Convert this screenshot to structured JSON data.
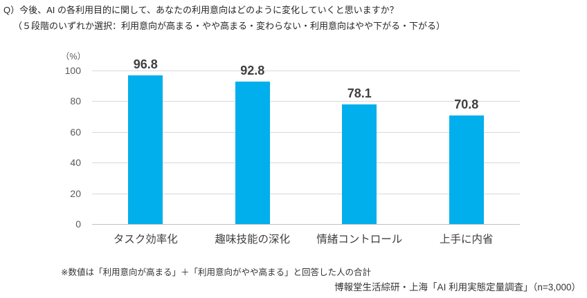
{
  "header": {
    "question": "Q）今後、AI の各利用目的に関して、あなたの利用意向はどのように変化していくと思いますか？",
    "scale_note": "（５段階のいずれか選択：利用意向が高まる・やや高まる・変わらない・利用意向はやや下がる・下がる）"
  },
  "chart_data": {
    "type": "bar",
    "title": "",
    "unit_label": "（%）",
    "categories": [
      "タスク効率化",
      "趣味技能の深化",
      "情緒コントロール",
      "上手に内省"
    ],
    "values": [
      96.8,
      92.8,
      78.1,
      70.8
    ],
    "xlabel": "",
    "ylabel": "%",
    "ylim": [
      0,
      100
    ],
    "yticks": [
      0,
      20,
      40,
      60,
      80,
      100
    ],
    "grid": true,
    "legend": false,
    "bar_color": "#00afec",
    "gridline_color": "#d9d9d9",
    "baseline_color": "#bfbfbf"
  },
  "footer": {
    "note": "※数値は「利用意向が高まる」＋「利用意向がやや高まる」と回答した人の合計",
    "source": "博報堂生活綜研・上海「AI 利用実態定量調査」（n=3,000）"
  }
}
